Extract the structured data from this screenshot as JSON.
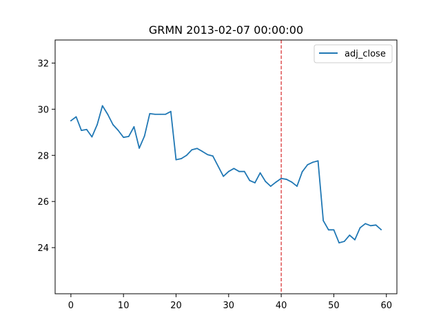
{
  "chart_data": {
    "type": "line",
    "title": "GRMN 2013-02-07 00:00:00",
    "xlabel": "",
    "ylabel": "",
    "xlim": [
      -3,
      62
    ],
    "ylim": [
      22.0,
      33.0
    ],
    "xticks": [
      0,
      10,
      20,
      30,
      40,
      50,
      60
    ],
    "yticks": [
      24,
      26,
      28,
      30,
      32
    ],
    "xtick_labels": [
      "0",
      "10",
      "20",
      "30",
      "40",
      "50",
      "60"
    ],
    "ytick_labels": [
      "24",
      "26",
      "28",
      "30",
      "32"
    ],
    "grid": false,
    "legend_position": "top-right",
    "series": [
      {
        "name": "adj_close",
        "color": "#1f77b4",
        "x": [
          0,
          1,
          2,
          3,
          4,
          5,
          6,
          7,
          8,
          9,
          10,
          11,
          12,
          13,
          14,
          15,
          16,
          17,
          18,
          19,
          20,
          21,
          22,
          23,
          24,
          25,
          26,
          27,
          28,
          29,
          30,
          31,
          32,
          33,
          34,
          35,
          36,
          37,
          38,
          39,
          40,
          41,
          42,
          43,
          44,
          45,
          46,
          47,
          48,
          49,
          50,
          51,
          52,
          53,
          54,
          55,
          56,
          57,
          58,
          59
        ],
        "values": [
          29.5,
          29.67,
          29.08,
          29.12,
          28.8,
          29.33,
          30.15,
          29.78,
          29.33,
          29.08,
          28.78,
          28.82,
          29.24,
          28.31,
          28.84,
          29.81,
          29.78,
          29.78,
          29.78,
          29.9,
          27.81,
          27.86,
          28.0,
          28.24,
          28.3,
          28.17,
          28.03,
          27.97,
          27.53,
          27.09,
          27.3,
          27.43,
          27.3,
          27.3,
          26.91,
          26.81,
          27.24,
          26.87,
          26.66,
          26.84,
          27.0,
          26.96,
          26.84,
          26.66,
          27.29,
          27.59,
          27.7,
          27.76,
          25.17,
          24.77,
          24.77,
          24.21,
          24.27,
          24.54,
          24.34,
          24.86,
          25.04,
          24.95,
          24.98,
          24.78
        ]
      }
    ],
    "vlines": [
      {
        "x": 40,
        "color": "#d62728",
        "style": "dashed"
      }
    ]
  }
}
